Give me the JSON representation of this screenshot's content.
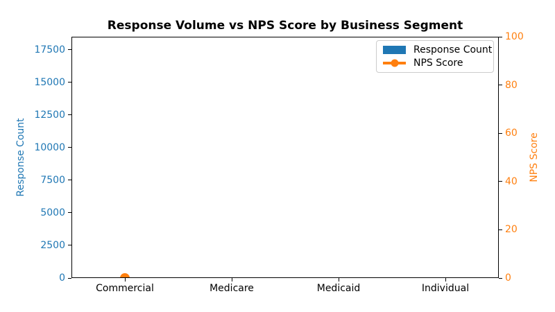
{
  "chart_data": {
    "type": "bar",
    "title": "Response Volume vs NPS Score by Business Segment",
    "categories": [
      "Commercial",
      "Medicare",
      "Medicaid",
      "Individual"
    ],
    "series": [
      {
        "name": "Response Count",
        "kind": "bar",
        "axis": "left",
        "color": "#1f77b4",
        "values": [
          0,
          0,
          0,
          0
        ]
      },
      {
        "name": "NPS Score",
        "kind": "line",
        "axis": "right",
        "color": "#ff7f0e",
        "values": [
          0,
          null,
          null,
          null
        ]
      }
    ],
    "xlabel": "",
    "ylabel_left": "Response Count",
    "ylabel_right": "NPS Score",
    "ylim_left": [
      0,
      18500
    ],
    "ylim_right": [
      0,
      100
    ],
    "yticks_left": [
      0,
      2500,
      5000,
      7500,
      10000,
      12500,
      15000,
      17500
    ],
    "yticks_right": [
      0,
      20,
      40,
      60,
      80,
      100
    ],
    "grid": false,
    "legend": {
      "position": "upper right",
      "entries": [
        "Response Count",
        "NPS Score"
      ]
    },
    "colors": {
      "left_axis": "#1f77b4",
      "right_axis": "#ff7f0e",
      "spine": "#000000",
      "tick_label_x": "#000000",
      "legend_border": "#cccccc",
      "background": "#ffffff"
    }
  }
}
